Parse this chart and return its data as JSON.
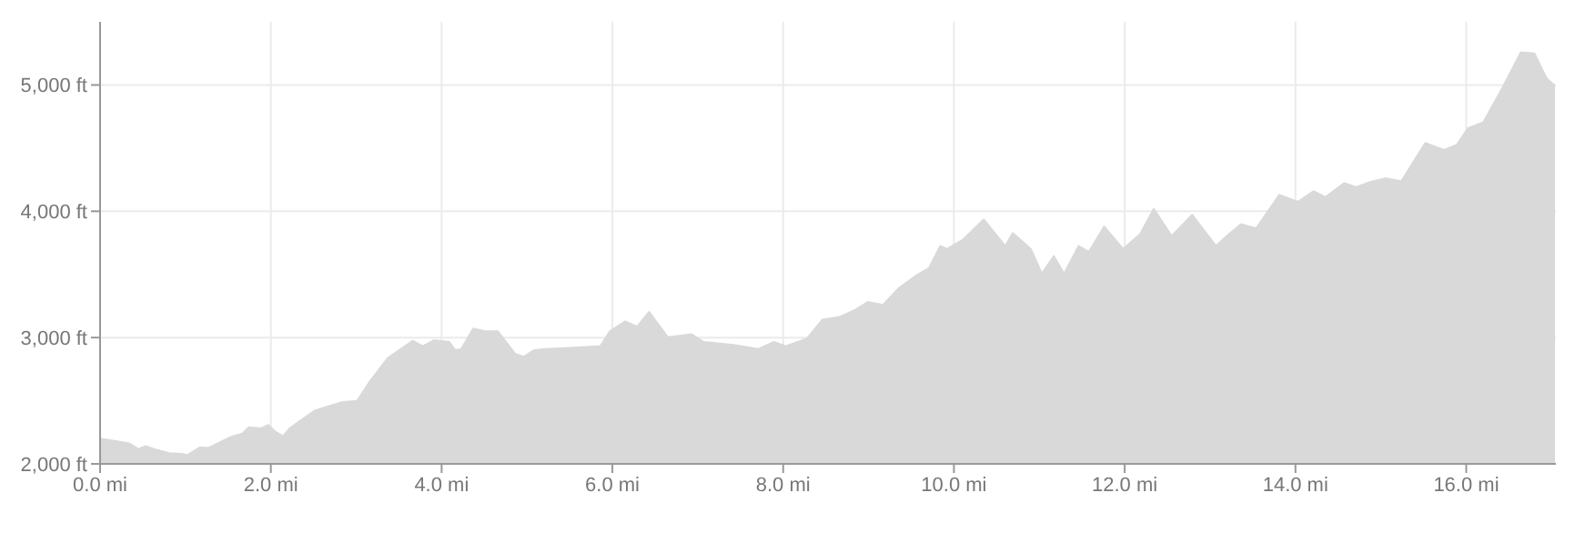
{
  "chart_data": {
    "type": "area",
    "color": "#d9d9d9",
    "grid": true,
    "x": [
      0,
      0.17,
      0.34,
      0.45,
      0.53,
      0.63,
      0.81,
      0.95,
      1.02,
      1.17,
      1.27,
      1.38,
      1.52,
      1.67,
      1.74,
      1.88,
      1.97,
      2.05,
      2.14,
      2.22,
      2.34,
      2.52,
      2.66,
      2.84,
      3.01,
      3.16,
      3.37,
      3.66,
      3.78,
      3.91,
      4.09,
      4.16,
      4.23,
      4.37,
      4.51,
      4.66,
      4.86,
      4.96,
      5.08,
      5.22,
      5.5,
      5.86,
      5.97,
      6.15,
      6.29,
      6.43,
      6.65,
      6.93,
      7.07,
      7.21,
      7.42,
      7.71,
      7.89,
      8.03,
      8.28,
      8.46,
      8.67,
      8.85,
      8.99,
      9.17,
      9.35,
      9.56,
      9.71,
      9.84,
      9.92,
      10.1,
      10.35,
      10.6,
      10.69,
      10.9,
      11.03,
      11.17,
      11.29,
      11.46,
      11.58,
      11.76,
      11.98,
      12.18,
      12.34,
      12.55,
      12.79,
      13.07,
      13.18,
      13.36,
      13.54,
      13.81,
      14.03,
      14.21,
      14.35,
      14.57,
      14.71,
      14.88,
      15.06,
      15.24,
      15.52,
      15.74,
      15.89,
      16.02,
      16.2,
      16.41,
      16.64,
      16.8,
      16.94,
      17.04
    ],
    "values": [
      2200,
      2182,
      2163,
      2117,
      2140,
      2117,
      2084,
      2079,
      2070,
      2130,
      2126,
      2163,
      2210,
      2242,
      2289,
      2280,
      2308,
      2256,
      2219,
      2280,
      2340,
      2424,
      2452,
      2490,
      2499,
      2653,
      2839,
      2974,
      2932,
      2979,
      2965,
      2900,
      2909,
      3072,
      3049,
      3049,
      2872,
      2848,
      2900,
      2909,
      2918,
      2932,
      3049,
      3128,
      3086,
      3203,
      3002,
      3026,
      2965,
      2956,
      2942,
      2909,
      2965,
      2932,
      2993,
      3142,
      3165,
      3221,
      3282,
      3259,
      3389,
      3492,
      3552,
      3725,
      3702,
      3772,
      3935,
      3725,
      3827,
      3702,
      3506,
      3646,
      3506,
      3725,
      3678,
      3879,
      3702,
      3818,
      4019,
      3804,
      3972,
      3725,
      3795,
      3897,
      3865,
      4130,
      4075,
      4159,
      4112,
      4224,
      4191,
      4233,
      4261,
      4238,
      4541,
      4485,
      4527,
      4657,
      4704,
      4960,
      5259,
      5249,
      5054,
      4993
    ],
    "xlim": [
      0,
      17.05
    ],
    "xticks": [
      {
        "value": 0,
        "label": "0.0 mi"
      },
      {
        "value": 2,
        "label": "2.0 mi"
      },
      {
        "value": 4,
        "label": "4.0 mi"
      },
      {
        "value": 6,
        "label": "6.0 mi"
      },
      {
        "value": 8,
        "label": "8.0 mi"
      },
      {
        "value": 10,
        "label": "10.0 mi"
      },
      {
        "value": 12,
        "label": "12.0 mi"
      },
      {
        "value": 14,
        "label": "14.0 mi"
      },
      {
        "value": 16,
        "label": "16.0 mi"
      }
    ],
    "ylim": [
      2000,
      5500
    ],
    "yticks": [
      {
        "value": 2000,
        "label": "2,000 ft"
      },
      {
        "value": 3000,
        "label": "3,000 ft"
      },
      {
        "value": 4000,
        "label": "4,000 ft"
      },
      {
        "value": 5000,
        "label": "5,000 ft"
      }
    ]
  }
}
